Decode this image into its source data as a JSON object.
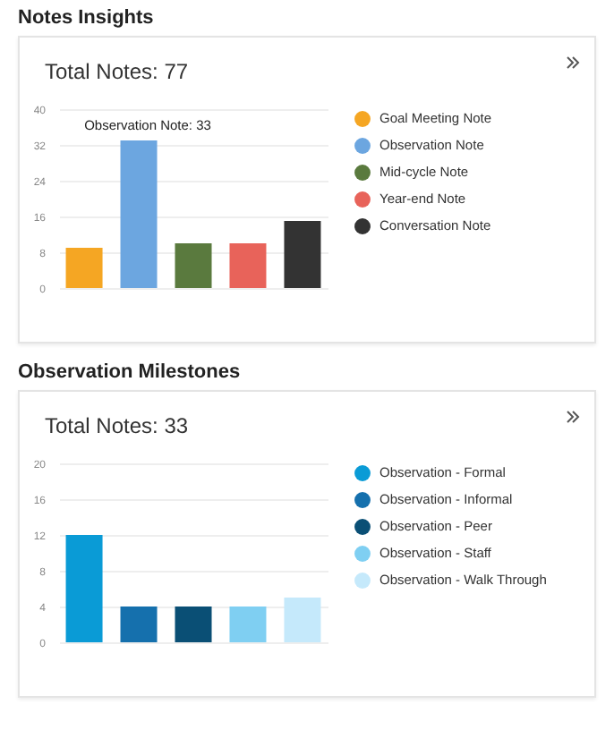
{
  "chart_data": [
    {
      "type": "bar",
      "title": "Notes Insights",
      "subtitle": "Total Notes: 77",
      "categories": [
        null,
        null,
        null,
        null,
        null
      ],
      "series": [
        {
          "name": "Goal Meeting Note",
          "color": "#f5a623",
          "values": [
            9,
            null,
            null,
            null,
            null
          ]
        },
        {
          "name": "Observation Note",
          "color": "#6ca6e0",
          "values": [
            null,
            33,
            null,
            null,
            null
          ]
        },
        {
          "name": "Mid-cycle Note",
          "color": "#5a7a3e",
          "values": [
            null,
            null,
            10,
            null,
            null
          ]
        },
        {
          "name": "Year-end Note",
          "color": "#e8635a",
          "values": [
            null,
            null,
            null,
            10,
            null
          ]
        },
        {
          "name": "Conversation Note",
          "color": "#333333",
          "values": [
            null,
            null,
            null,
            null,
            15
          ]
        }
      ],
      "ylim": [
        0,
        40
      ],
      "yticks": [
        0,
        8,
        16,
        24,
        32,
        40
      ],
      "grid": "y",
      "legend": "right",
      "tick_labels": "y",
      "annotations": [
        {
          "text": "Observation Note: 33",
          "y": 33
        }
      ]
    },
    {
      "type": "bar",
      "title": "Observation Milestones",
      "subtitle": "Total Notes: 33",
      "categories": [
        null,
        null,
        null,
        null,
        null
      ],
      "series": [
        {
          "name": "Observation - Formal",
          "color": "#0a9bd6",
          "values": [
            12,
            null,
            null,
            null,
            null
          ]
        },
        {
          "name": "Observation - Informal",
          "color": "#1570ad",
          "values": [
            null,
            4,
            null,
            null,
            null
          ]
        },
        {
          "name": "Observation - Peer",
          "color": "#0a4f75",
          "values": [
            null,
            null,
            4,
            null,
            null
          ]
        },
        {
          "name": "Observation - Staff",
          "color": "#7fcff2",
          "values": [
            null,
            null,
            null,
            4,
            null
          ]
        },
        {
          "name": "Observation - Walk Through",
          "color": "#c5e9fb",
          "values": [
            null,
            null,
            null,
            null,
            5
          ]
        }
      ],
      "ylim": [
        0,
        20
      ],
      "yticks": [
        0,
        4,
        8,
        12,
        16,
        20
      ],
      "grid": "y",
      "legend": "right",
      "tick_labels": "y"
    }
  ]
}
